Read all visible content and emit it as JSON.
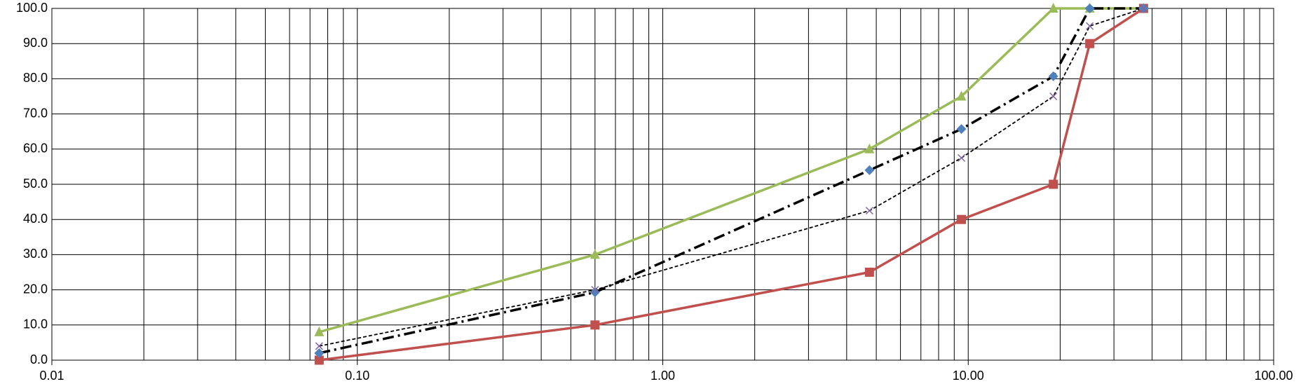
{
  "chart_data": {
    "type": "line",
    "x_scale": "log",
    "grid": true,
    "x": [
      0.075,
      0.6,
      4.75,
      9.5,
      19,
      25,
      37.5
    ],
    "series": [
      {
        "color": "#9bbb59",
        "line_color": "#9bbb59",
        "line_style": "solid",
        "line_width": 3.5,
        "marker": "triangle",
        "values": [
          8,
          30,
          60,
          75,
          100,
          100,
          100
        ]
      },
      {
        "color": "#c0504d",
        "line_color": "#c0504d",
        "line_style": "solid",
        "line_width": 3.5,
        "marker": "square",
        "values": [
          0,
          10,
          25,
          40,
          50,
          90,
          100
        ]
      },
      {
        "color": "#4f81bd",
        "line_color": "#000000",
        "line_style": "dashdot",
        "line_width": 3.5,
        "marker": "diamond",
        "values": [
          2,
          19.3,
          54,
          65.7,
          80.7,
          100,
          100
        ]
      },
      {
        "color": "#8064a2",
        "line_color": "#000000",
        "line_style": "dashed",
        "line_width": 1.8,
        "marker": "x",
        "values": [
          4,
          20,
          42.5,
          57.5,
          75,
          95,
          100
        ]
      }
    ],
    "xlim": [
      0.01,
      100
    ],
    "xticks": [
      0.01,
      {
        "value": 0.1,
        "label": "0.10"
      },
      {
        "value": 1,
        "label": "1.00"
      },
      {
        "value": 10,
        "label": "10.00"
      },
      {
        "value": 100,
        "label": "100.00"
      }
    ],
    "xminorticks": [
      0.02,
      0.03,
      0.04,
      0.05,
      0.06,
      0.07,
      0.08,
      0.09,
      0.2,
      0.3,
      0.4,
      0.5,
      0.6,
      0.7,
      0.8,
      0.9,
      2,
      3,
      4,
      5,
      6,
      7,
      8,
      9,
      20,
      30,
      40,
      50,
      60,
      70,
      80,
      90
    ],
    "ylim": [
      0,
      100
    ],
    "yticks": [
      {
        "value": 0,
        "label": "0.0"
      },
      {
        "value": 10,
        "label": "10.0"
      },
      {
        "value": 20,
        "label": "20.0"
      },
      {
        "value": 30,
        "label": "30.0"
      },
      {
        "value": 40,
        "label": "40.0"
      },
      {
        "value": 50,
        "label": "50.0"
      },
      {
        "value": 60,
        "label": "60.0"
      },
      {
        "value": 70,
        "label": "70.0"
      },
      {
        "value": 80,
        "label": "80.0"
      },
      {
        "value": 90,
        "label": "90.0"
      },
      {
        "value": 100,
        "label": "100.0"
      }
    ]
  }
}
